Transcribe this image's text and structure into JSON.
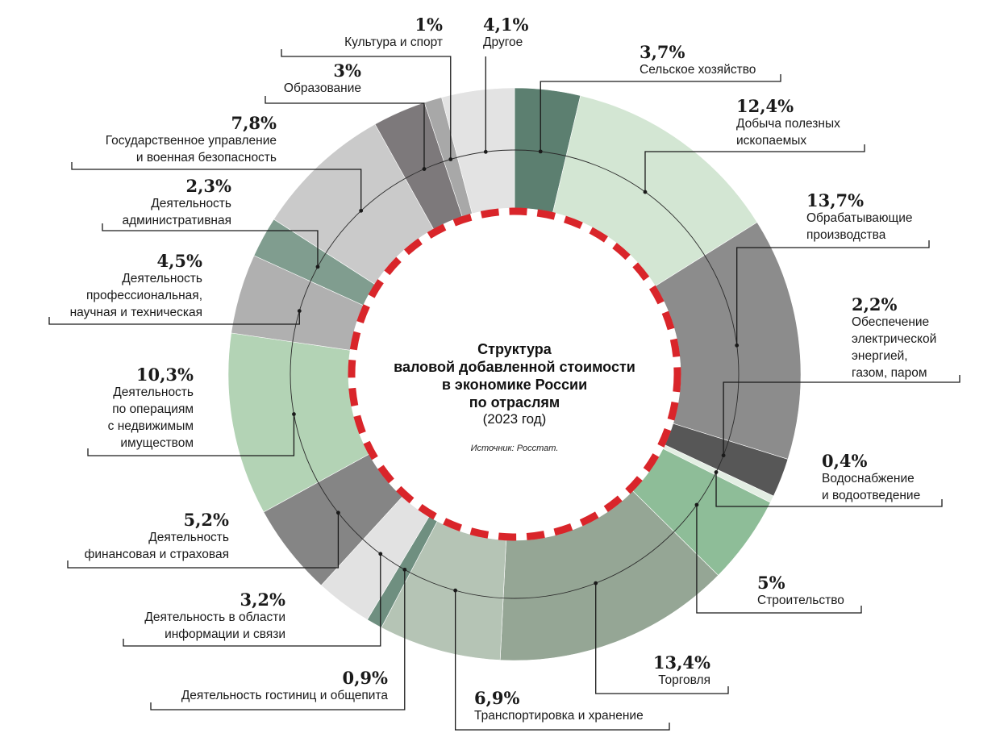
{
  "chart_data": {
    "type": "pie",
    "title_lines": [
      "Структура",
      "валовой добавленной стоимости",
      "в экономике России",
      "по отраслям"
    ],
    "year_label": "(2023 год)",
    "source": "Источник: Росстат.",
    "slices": [
      {
        "name": "Сельское хозяйство",
        "label_lines": [
          "Сельское хозяйство"
        ],
        "value": 3.7,
        "pct_text": "3,7%",
        "color": "#5c7f70"
      },
      {
        "name": "Добыча полезных ископаемых",
        "label_lines": [
          "Добыча полезных",
          "ископаемых"
        ],
        "value": 12.4,
        "pct_text": "12,4%",
        "color": "#d3e6d3"
      },
      {
        "name": "Обрабатывающие производства",
        "label_lines": [
          "Обрабатывающие",
          "производства"
        ],
        "value": 13.7,
        "pct_text": "13,7%",
        "color": "#8c8c8c"
      },
      {
        "name": "Обеспечение электрической энергией, газом, паром",
        "label_lines": [
          "Обеспечение",
          "электрической",
          "энергией,",
          "газом, паром"
        ],
        "value": 2.2,
        "pct_text": "2,2%",
        "color": "#575757"
      },
      {
        "name": "Водоснабжение и водоотведение",
        "label_lines": [
          "Водоснабжение",
          "и водоотведение"
        ],
        "value": 0.4,
        "pct_text": "0,4%",
        "color": "#e3eee3"
      },
      {
        "name": "Строительство",
        "label_lines": [
          "Строительство"
        ],
        "value": 5.0,
        "pct_text": "5%",
        "color": "#8ebd98"
      },
      {
        "name": "Торговля",
        "label_lines": [
          "Торговля"
        ],
        "value": 13.4,
        "pct_text": "13,4%",
        "color": "#95a695"
      },
      {
        "name": "Транспортировка и хранение",
        "label_lines": [
          "Транспортировка и хранение"
        ],
        "value": 6.9,
        "pct_text": "6,9%",
        "color": "#b5c4b5"
      },
      {
        "name": "Деятельность гостиниц и общепита",
        "label_lines": [
          "Деятельность гостиниц и общепита"
        ],
        "value": 0.9,
        "pct_text": "0,9%",
        "color": "#6f8f80"
      },
      {
        "name": "Деятельность в области информации и связи",
        "label_lines": [
          "Деятельность в области",
          "информации и связи"
        ],
        "value": 3.2,
        "pct_text": "3,2%",
        "color": "#e2e2e2"
      },
      {
        "name": "Деятельность финансовая и страховая",
        "label_lines": [
          "Деятельность",
          "финансовая и страховая"
        ],
        "value": 5.2,
        "pct_text": "5,2%",
        "color": "#858585"
      },
      {
        "name": "Деятельность по операциям с недвижимым имуществом",
        "label_lines": [
          "Деятельность",
          "по операциям",
          "с недвижимым",
          "имуществом"
        ],
        "value": 10.3,
        "pct_text": "10,3%",
        "color": "#b3d3b5"
      },
      {
        "name": "Деятельность профессиональная, научная и техническая",
        "label_lines": [
          "Деятельность",
          "профессиональная,",
          "научная и техническая"
        ],
        "value": 4.5,
        "pct_text": "4,5%",
        "color": "#b0b0b0"
      },
      {
        "name": "Деятельность административная",
        "label_lines": [
          "Деятельность",
          "административная"
        ],
        "value": 2.3,
        "pct_text": "2,3%",
        "color": "#809d8f"
      },
      {
        "name": "Государственное управление и военная безопасность",
        "label_lines": [
          "Государственное управление",
          "и военная безопасность"
        ],
        "value": 7.8,
        "pct_text": "7,8%",
        "color": "#cacaca"
      },
      {
        "name": "Образование",
        "label_lines": [
          "Образование"
        ],
        "value": 3.0,
        "pct_text": "3%",
        "color": "#7d797b"
      },
      {
        "name": "Культура и спорт",
        "label_lines": [
          "Культура и спорт"
        ],
        "value": 1.0,
        "pct_text": "1%",
        "color": "#a8a8a8"
      },
      {
        "name": "Другое",
        "label_lines": [
          "Другое"
        ],
        "value": 4.1,
        "pct_text": "4,1%",
        "color": "#e3e3e3"
      }
    ],
    "center_ring_style": "dashed",
    "center_ring_color": "#d9252a"
  }
}
